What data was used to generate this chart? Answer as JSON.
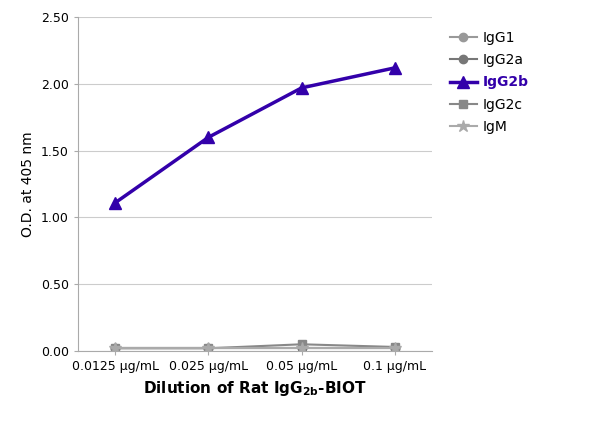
{
  "x_labels": [
    "0.0125 μg/mL",
    "0.025 μg/mL",
    "0.05 μg/mL",
    "0.1 μg/mL"
  ],
  "x_positions": [
    0,
    1,
    2,
    3
  ],
  "series": [
    {
      "name": "IgG1",
      "values": [
        0.02,
        0.02,
        0.02,
        0.02
      ],
      "color": "#999999",
      "marker": "o",
      "linewidth": 1.5,
      "markersize": 6,
      "zorder": 2
    },
    {
      "name": "IgG2a",
      "values": [
        0.02,
        0.02,
        0.02,
        0.02
      ],
      "color": "#777777",
      "marker": "o",
      "linewidth": 1.5,
      "markersize": 6,
      "zorder": 2
    },
    {
      "name": "IgG2b",
      "values": [
        1.11,
        1.6,
        1.97,
        2.12
      ],
      "color": "#3300aa",
      "marker": "^",
      "linewidth": 2.5,
      "markersize": 9,
      "zorder": 5
    },
    {
      "name": "IgG2c",
      "values": [
        0.02,
        0.02,
        0.05,
        0.03
      ],
      "color": "#888888",
      "marker": "s",
      "linewidth": 1.5,
      "markersize": 6,
      "zorder": 2
    },
    {
      "name": "IgM",
      "values": [
        0.02,
        0.02,
        0.02,
        0.02
      ],
      "color": "#aaaaaa",
      "marker": "*",
      "linewidth": 1.5,
      "markersize": 9,
      "zorder": 2
    }
  ],
  "ylabel": "O.D. at 405 nm",
  "ylim": [
    0.0,
    2.5
  ],
  "yticks": [
    0.0,
    0.5,
    1.0,
    1.5,
    2.0,
    2.5
  ],
  "legend_fontsize": 10,
  "xlabel_fontsize": 11,
  "ylabel_fontsize": 10,
  "tick_fontsize": 9,
  "figsize": [
    6.0,
    4.28
  ],
  "dpi": 100
}
